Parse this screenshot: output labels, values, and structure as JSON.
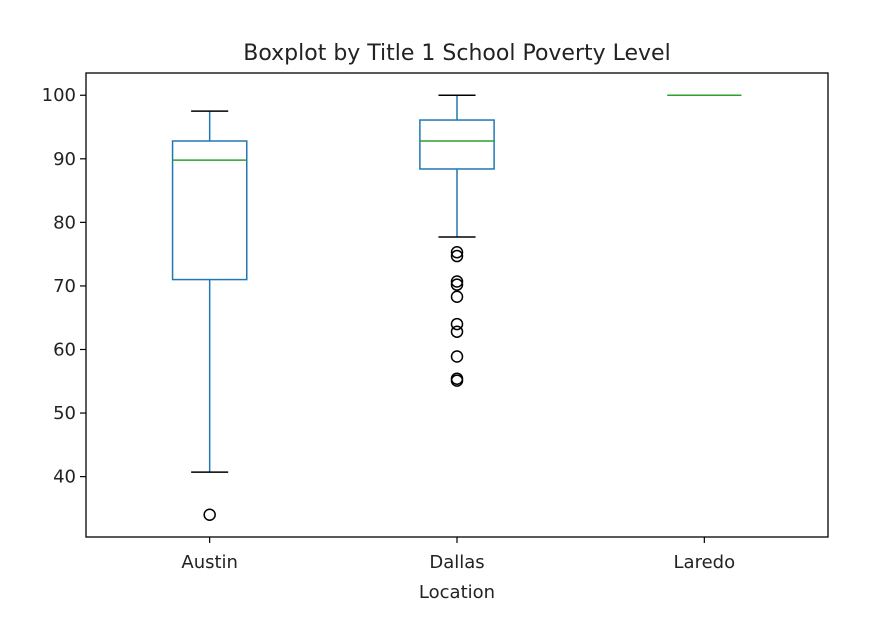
{
  "chart_data": {
    "type": "boxplot",
    "title": "Boxplot by Title 1 School Poverty Level",
    "xlabel": "Location",
    "ylabel": "",
    "ylim": [
      30.5,
      103.5
    ],
    "yticks": [
      40,
      50,
      60,
      70,
      80,
      90,
      100
    ],
    "ytick_labels": [
      "40",
      "50",
      "60",
      "70",
      "80",
      "90",
      "100"
    ],
    "grid": false,
    "colors": {
      "box": "#1f77b4",
      "median": "#2ca02c",
      "whisker": "#1f77b4",
      "cap": "#000000",
      "flier": "#000000"
    },
    "categories": [
      "Austin",
      "Dallas",
      "Laredo"
    ],
    "boxes": [
      {
        "name": "Austin",
        "whislo": 40.7,
        "q1": 71.0,
        "med": 89.8,
        "q3": 92.8,
        "whishi": 97.5,
        "fliers": [
          34.0
        ]
      },
      {
        "name": "Dallas",
        "whislo": 77.7,
        "q1": 88.4,
        "med": 92.8,
        "q3": 96.1,
        "whishi": 100.0,
        "fliers": [
          75.3,
          74.7,
          70.7,
          70.2,
          68.3,
          64.0,
          62.8,
          58.9,
          55.4,
          55.1
        ]
      },
      {
        "name": "Laredo",
        "whislo": 100.0,
        "q1": 100.0,
        "med": 100.0,
        "q3": 100.0,
        "whishi": 100.0,
        "fliers": []
      }
    ]
  }
}
